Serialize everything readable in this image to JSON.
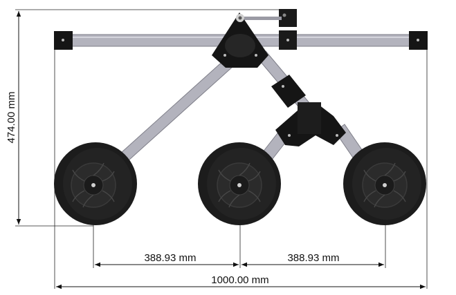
{
  "dimensions": {
    "height_label": "474.00 mm",
    "spacing_left_label": "388.93 mm",
    "spacing_right_label": "388.93 mm",
    "overall_width_label": "1000.00 mm"
  },
  "colors": {
    "frame_bar": "#b3b3bd",
    "frame_bar_edge": "#7e7e88",
    "bracket": "#151515",
    "tire": "#1c1c1c",
    "rim": "#2a2a2a",
    "dimension_line": "#111111"
  }
}
